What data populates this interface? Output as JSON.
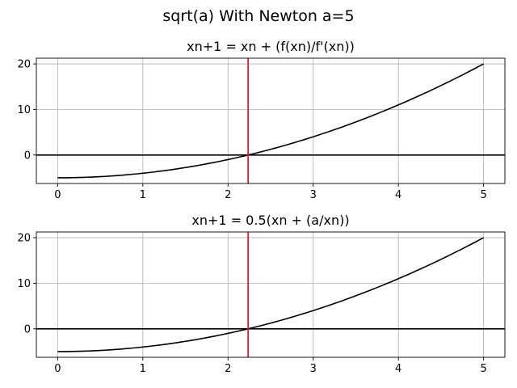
{
  "figure": {
    "title": "sqrt(a) With Newton a=5"
  },
  "chart_data": [
    {
      "type": "line",
      "title": "xn+1 = xn + (f(xn)/f'(xn))",
      "xlabel": "",
      "ylabel": "",
      "xlim": [
        -0.25,
        5.25
      ],
      "ylim": [
        -6.25,
        21.25
      ],
      "xticks": [
        0,
        1,
        2,
        3,
        4,
        5
      ],
      "xtick_labels": [
        "0",
        "1",
        "2",
        "3",
        "4",
        "5"
      ],
      "yticks": [
        0,
        10,
        20
      ],
      "ytick_labels": [
        "0",
        "10",
        "20"
      ],
      "grid": true,
      "function": "x^2 - 5",
      "x": [
        0,
        0.5,
        1,
        1.5,
        2,
        2.25,
        2.5,
        3,
        3.5,
        4,
        4.5,
        5
      ],
      "y": [
        -5,
        -4.75,
        -4,
        -2.75,
        -1,
        0.06,
        1.25,
        4,
        7.25,
        11,
        15.25,
        20
      ],
      "hline_y": 0,
      "vline_x": 2.236,
      "colors": {
        "curve": "#000000",
        "hline": "#000000",
        "vline": "#e41a1c"
      }
    },
    {
      "type": "line",
      "title": "xn+1 = 0.5(xn + (a/xn))",
      "xlabel": "",
      "ylabel": "",
      "xlim": [
        -0.25,
        5.25
      ],
      "ylim": [
        -6.25,
        21.25
      ],
      "xticks": [
        0,
        1,
        2,
        3,
        4,
        5
      ],
      "xtick_labels": [
        "0",
        "1",
        "2",
        "3",
        "4",
        "5"
      ],
      "yticks": [
        0,
        10,
        20
      ],
      "ytick_labels": [
        "0",
        "10",
        "20"
      ],
      "grid": true,
      "function": "x^2 - 5",
      "x": [
        0,
        0.5,
        1,
        1.5,
        2,
        2.25,
        2.5,
        3,
        3.5,
        4,
        4.5,
        5
      ],
      "y": [
        -5,
        -4.75,
        -4,
        -2.75,
        -1,
        0.06,
        1.25,
        4,
        7.25,
        11,
        15.25,
        20
      ],
      "hline_y": 0,
      "vline_x": 2.236,
      "colors": {
        "curve": "#000000",
        "hline": "#000000",
        "vline": "#e41a1c"
      }
    }
  ]
}
